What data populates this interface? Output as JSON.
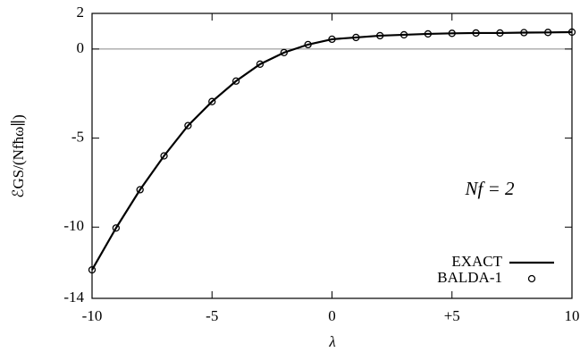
{
  "chart_data": {
    "type": "line",
    "x_label": "λ",
    "y_label": "ℰGS/(Nfħω∥)",
    "annotation": "Nf = 2",
    "xlim": [
      -10,
      10
    ],
    "xticks": [
      -10,
      -5,
      0,
      {
        "value": 5,
        "label": "+5"
      },
      10
    ],
    "ylim": [
      -14,
      2
    ],
    "yticks": [
      -14,
      -10,
      -5,
      0,
      2
    ],
    "zero_line": true,
    "legend": "lower right",
    "x": [
      -10,
      -9,
      -8,
      -7,
      -6,
      -5,
      -4,
      -3,
      -2,
      -1,
      0,
      1,
      2,
      3,
      4,
      5,
      6,
      7,
      8,
      9,
      10
    ],
    "series": [
      {
        "name": "EXACT",
        "kind": "line",
        "color": "#000000",
        "values": [
          -12.4,
          -10.05,
          -7.9,
          -6.0,
          -4.3,
          -2.95,
          -1.8,
          -0.85,
          -0.2,
          0.25,
          0.55,
          0.65,
          0.75,
          0.8,
          0.85,
          0.88,
          0.9,
          0.9,
          0.92,
          0.93,
          0.95
        ]
      },
      {
        "name": "BALDA-1",
        "kind": "scatter",
        "color": "#000000",
        "values": [
          -12.4,
          -10.05,
          -7.9,
          -6.0,
          -4.3,
          -2.95,
          -1.8,
          -0.85,
          -0.2,
          0.25,
          0.55,
          0.65,
          0.75,
          0.8,
          0.85,
          0.88,
          0.9,
          0.9,
          0.92,
          0.93,
          0.95
        ]
      }
    ]
  }
}
